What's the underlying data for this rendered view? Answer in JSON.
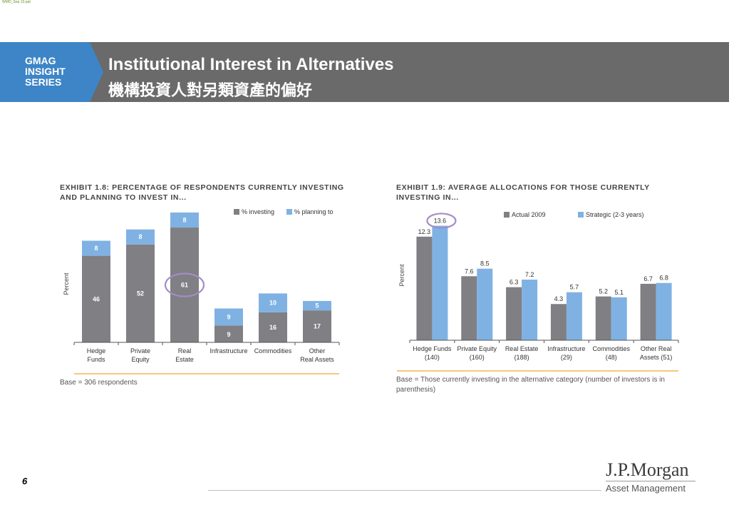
{
  "doc_id": "WMO_Sep 10.ppt",
  "banner": {
    "series_lines": [
      "GMAG",
      "INSIGHT",
      "SERIES"
    ],
    "title_en": "Institutional Interest in Alternatives",
    "title_zh": "機構投資人對另類資產的偏好"
  },
  "colors": {
    "investing": "#807f84",
    "planning": "#7fb2e3",
    "banner_gray": "#6a6a6a",
    "banner_blue": "#3d85c6",
    "highlight": "#a58bc8",
    "rule": "#f0a830"
  },
  "chart_data": [
    {
      "type": "bar",
      "stacked": true,
      "title": "EXHIBIT 1.8: PERCENTAGE OF RESPONDENTS CURRENTLY INVESTING AND PLANNING TO INVEST IN...",
      "ylabel": "Percent",
      "categories": [
        [
          "Hedge",
          "Funds"
        ],
        [
          "Private",
          "Equity"
        ],
        [
          "Real",
          "Estate"
        ],
        [
          "Infrastructure"
        ],
        [
          "Commodities"
        ],
        [
          "Other",
          "Real Assets"
        ]
      ],
      "series": [
        {
          "name": "% investing",
          "values": [
            46,
            52,
            61,
            9,
            16,
            17
          ]
        },
        {
          "name": "% planning to",
          "values": [
            8,
            8,
            8,
            9,
            10,
            5
          ]
        }
      ],
      "ylim": [
        0,
        72
      ],
      "highlight_category_index": 2,
      "legend_position": "top-right",
      "note": "Base = 306 respondents"
    },
    {
      "type": "bar",
      "stacked": false,
      "title": "EXHIBIT 1.9: AVERAGE ALLOCATIONS FOR THOSE CURRENTLY INVESTING IN...",
      "ylabel": "Percent",
      "categories": [
        [
          "Hedge Funds",
          "(140)"
        ],
        [
          "Private Equity",
          "(160)"
        ],
        [
          "Real Estate",
          "(188)"
        ],
        [
          "Infrastructure",
          "(29)"
        ],
        [
          "Commodities",
          "(48)"
        ],
        [
          "Other Real",
          "Assets (51)"
        ]
      ],
      "series": [
        {
          "name": "Actual 2009",
          "values": [
            12.3,
            7.6,
            6.3,
            4.3,
            5.2,
            6.7
          ]
        },
        {
          "name": "Strategic (2-3 years)",
          "values": [
            13.6,
            8.5,
            7.2,
            5.7,
            5.1,
            6.8
          ]
        }
      ],
      "ylim": [
        0,
        14.4
      ],
      "highlight_series_index": 1,
      "highlight_category_index": 0,
      "legend_position": "top-right",
      "note": "Base = Those currently investing in the alternative category (number of investors is in parenthesis)"
    }
  ],
  "footer": {
    "page_number": "6",
    "logo_main": "J.P.Morgan",
    "logo_sub": "Asset Management"
  }
}
